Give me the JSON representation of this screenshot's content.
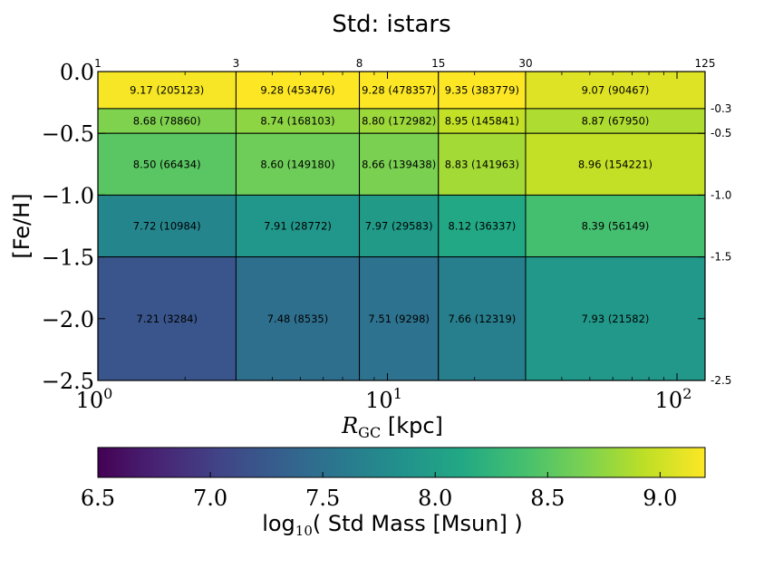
{
  "chart_data": [
    {
      "type": "heatmap",
      "title": "Std:  istars",
      "xlabel": "R",
      "xlabel_sub": "GC",
      "xlabel_unit": " [kpc]",
      "ylabel": "[Fe/H]",
      "x_scale": "log",
      "xlim": [
        1,
        125
      ],
      "ylim": [
        -2.5,
        0.0
      ],
      "x_edges": [
        1,
        3,
        8,
        15,
        30,
        125
      ],
      "x_edge_labels": [
        "1",
        "3",
        "8",
        "15",
        "30",
        "125"
      ],
      "y_edges": [
        0.0,
        -0.3,
        -0.5,
        -1.0,
        -1.5,
        -2.5
      ],
      "y_edge_labels": [
        "-0.3",
        "-0.5",
        "-1.0",
        "-1.5",
        "-2.5"
      ],
      "x_ticks": [
        {
          "value": 1,
          "base": "10",
          "exp": "0"
        },
        {
          "value": 10,
          "base": "10",
          "exp": "1"
        },
        {
          "value": 100,
          "base": "10",
          "exp": "2"
        }
      ],
      "y_ticks": [
        {
          "value": 0.0,
          "label": "0.0"
        },
        {
          "value": -0.5,
          "label": "−0.5"
        },
        {
          "value": -1.0,
          "label": "−1.0"
        },
        {
          "value": -1.5,
          "label": "−1.5"
        },
        {
          "value": -2.0,
          "label": "−2.0"
        },
        {
          "value": -2.5,
          "label": "−2.5"
        }
      ],
      "values": [
        [
          9.17,
          9.28,
          9.28,
          9.35,
          9.07
        ],
        [
          8.68,
          8.74,
          8.8,
          8.95,
          8.87
        ],
        [
          8.5,
          8.6,
          8.66,
          8.83,
          8.96
        ],
        [
          7.72,
          7.91,
          7.97,
          8.12,
          8.39
        ],
        [
          7.21,
          7.48,
          7.51,
          7.66,
          7.93
        ]
      ],
      "counts": [
        [
          205123,
          453476,
          478357,
          383779,
          90467
        ],
        [
          78860,
          168103,
          172982,
          145841,
          67950
        ],
        [
          66434,
          149180,
          139438,
          141963,
          154221
        ],
        [
          10984,
          28772,
          29583,
          36337,
          56149
        ],
        [
          3284,
          8535,
          9298,
          12319,
          21582
        ]
      ],
      "cell_labels": [
        [
          "9.17 (205123)",
          "9.28 (453476)",
          "9.28 (478357)",
          "9.35 (383779)",
          "9.07 (90467)"
        ],
        [
          "8.68 (78860)",
          "8.74 (168103)",
          "8.80 (172982)",
          "8.95 (145841)",
          "8.87 (67950)"
        ],
        [
          "8.50 (66434)",
          "8.60 (149180)",
          "8.66 (139438)",
          "8.83 (141963)",
          "8.96 (154221)"
        ],
        [
          "7.72 (10984)",
          "7.91 (28772)",
          "7.97 (29583)",
          "8.12 (36337)",
          "8.39 (56149)"
        ],
        [
          "7.21 (3284)",
          "7.48 (8535)",
          "7.51 (9298)",
          "7.66 (12319)",
          "7.93 (21582)"
        ]
      ],
      "colormap": "viridis",
      "colorbar": {
        "label_pre": "log",
        "label_sub": "10",
        "label_post": "( Std Mass [Msun] )",
        "range": [
          6.5,
          9.2
        ],
        "ticks": [
          6.5,
          7.0,
          7.5,
          8.0,
          8.5,
          9.0
        ],
        "tick_labels": [
          "6.5",
          "7.0",
          "7.5",
          "8.0",
          "8.5",
          "9.0"
        ],
        "orientation": "horizontal"
      },
      "grid": false
    }
  ]
}
